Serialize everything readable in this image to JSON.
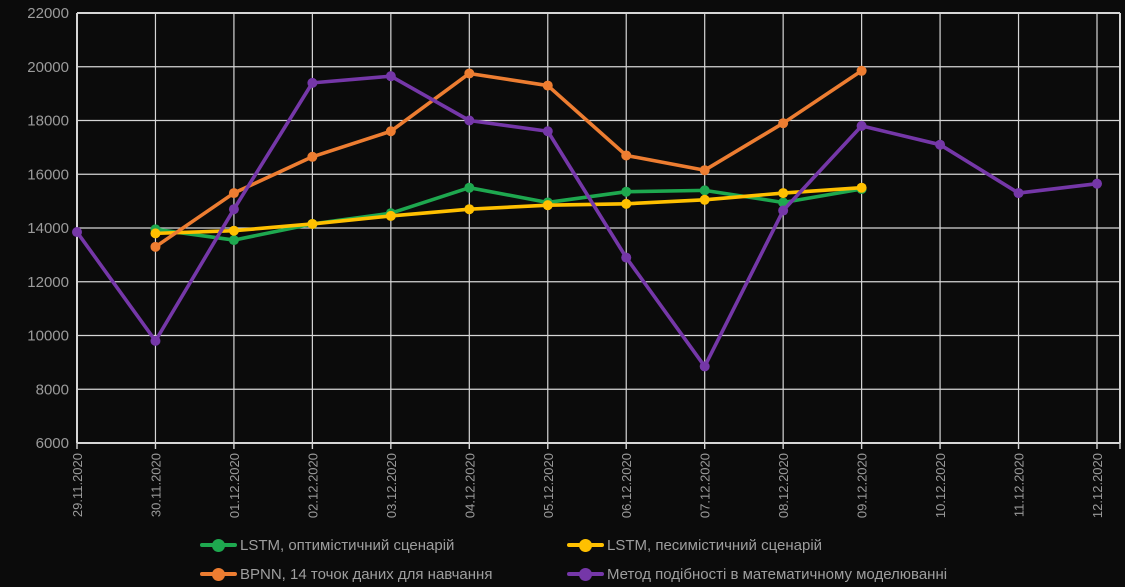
{
  "chart_data": {
    "type": "line",
    "title": "",
    "xlabel": "",
    "ylabel": "",
    "grid": true,
    "legend_position": "bottom",
    "background_color": "#0b0b0b",
    "gridline_color": "#d6d6d6",
    "axis_text_color": "#9b9b9b",
    "legend_text_color": "#9e9e9e",
    "categories": [
      "29.11.2020",
      "30.11.2020",
      "01.12.2020",
      "02.12.2020",
      "03.12.2020",
      "04.12.2020",
      "05.12.2020",
      "06.12.2020",
      "07.12.2020",
      "08.12.2020",
      "09.12.2020",
      "10.12.2020",
      "11.12.2020",
      "12.12.2020"
    ],
    "y_axis": {
      "min": 6000,
      "max": 22000,
      "step": 2000,
      "tick_labels": [
        "6000",
        "8000",
        "10000",
        "12000",
        "14000",
        "16000",
        "18000",
        "20000",
        "22000"
      ]
    },
    "series": [
      {
        "key": "lstm-optimistic",
        "name": "LSTM, оптимістичний сценарій",
        "color": "#1ea84f",
        "values": [
          null,
          13950,
          13550,
          14150,
          14550,
          15500,
          14950,
          15350,
          15400,
          14950,
          15450,
          null,
          null,
          null
        ]
      },
      {
        "key": "lstm-pessimistic",
        "name": "LSTM, песимістичний сценарій",
        "color": "#ffc000",
        "values": [
          null,
          13800,
          13900,
          14150,
          14450,
          14700,
          14850,
          14900,
          15050,
          15300,
          15500,
          null,
          null,
          null
        ]
      },
      {
        "key": "bpnn",
        "name": "BPNN, 14 точок даних для навчання",
        "color": "#ed7d31",
        "values": [
          null,
          13300,
          15300,
          16650,
          17600,
          19750,
          19300,
          16700,
          16150,
          17900,
          19850,
          null,
          null,
          null
        ]
      },
      {
        "key": "similarity-method",
        "name": "Метод подібності в математичному моделюванні",
        "color": "#7537a8",
        "values": [
          13850,
          9800,
          14700,
          19400,
          19650,
          18000,
          17600,
          12900,
          8850,
          14650,
          17800,
          17100,
          15300,
          15650
        ]
      }
    ]
  }
}
